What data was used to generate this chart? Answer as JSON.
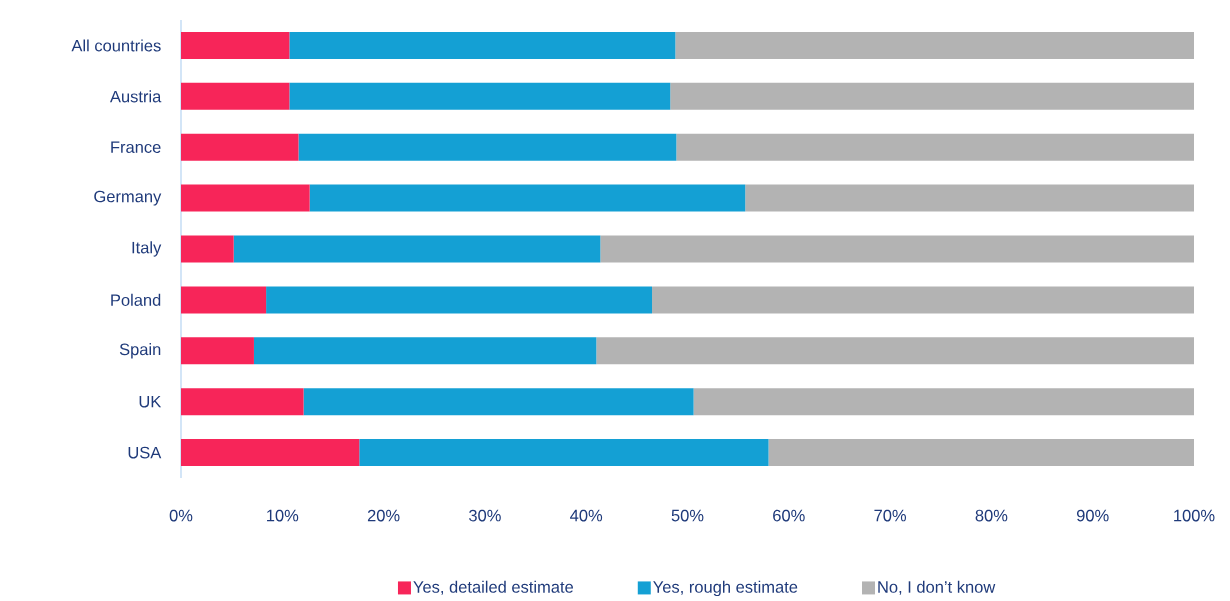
{
  "chart_data": {
    "type": "bar",
    "orientation": "horizontal",
    "stacked": true,
    "categories": [
      "All countries",
      "Austria",
      "France",
      "Germany",
      "Italy",
      "Poland",
      "Spain",
      "UK",
      "USA"
    ],
    "series": [
      {
        "name": "Yes, detailed estimate",
        "color": "#f72559",
        "values": [
          10.7,
          10.7,
          11.6,
          12.7,
          5.2,
          8.4,
          7.2,
          12.1,
          17.6
        ]
      },
      {
        "name": "Yes, rough estimate",
        "color": "#14a0d4",
        "values": [
          38.1,
          37.6,
          37.3,
          43.0,
          36.2,
          38.1,
          33.8,
          38.5,
          40.4
        ]
      },
      {
        "name": "No, I don’t know",
        "color": "#b3b3b3",
        "values": [
          51.2,
          51.7,
          51.1,
          44.3,
          58.6,
          53.5,
          59.0,
          49.4,
          42.0
        ]
      }
    ],
    "xlim": [
      0,
      100
    ],
    "xticks": [
      {
        "value": 0,
        "label": "0%"
      },
      {
        "value": 10,
        "label": "10%"
      },
      {
        "value": 20,
        "label": "20%"
      },
      {
        "value": 30,
        "label": "30%"
      },
      {
        "value": 40,
        "label": "40%"
      },
      {
        "value": 50,
        "label": "50%"
      },
      {
        "value": 60,
        "label": "60%"
      },
      {
        "value": 70,
        "label": "70%"
      },
      {
        "value": 80,
        "label": "80%"
      },
      {
        "value": 90,
        "label": "90%"
      },
      {
        "value": 100,
        "label": "100%"
      }
    ],
    "grid": false,
    "legend": "bottom"
  }
}
